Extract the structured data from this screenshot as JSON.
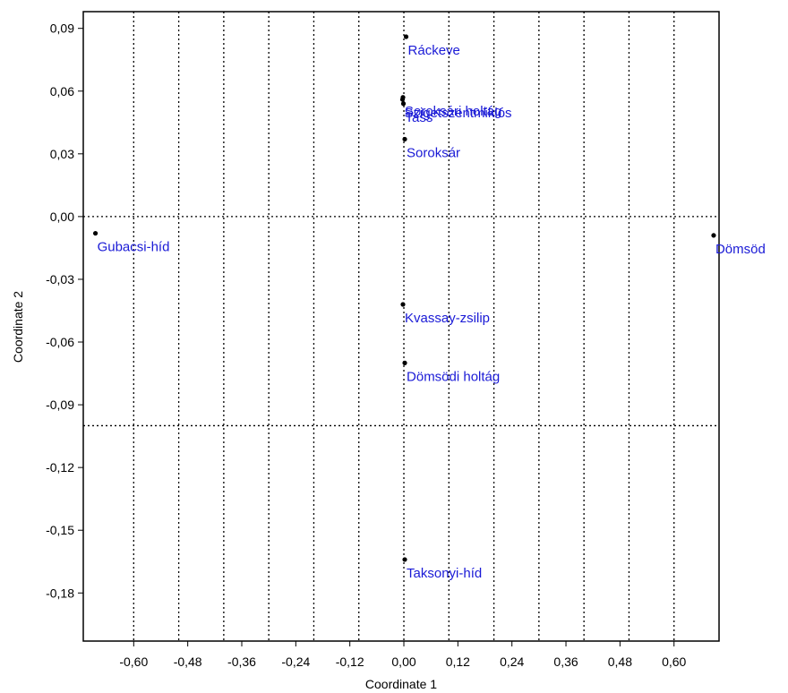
{
  "chart_data": {
    "type": "scatter",
    "title": "",
    "xlabel": "Coordinate 1",
    "ylabel": "Coordinate 2",
    "xlim": [
      -0.712,
      0.7
    ],
    "ylim": [
      -0.203,
      0.098
    ],
    "xticks": [
      -0.6,
      -0.48,
      -0.36,
      -0.24,
      -0.12,
      0.0,
      0.12,
      0.24,
      0.36,
      0.48,
      0.6
    ],
    "xtick_labels": [
      "-0,60",
      "-0,48",
      "-0,36",
      "-0,24",
      "-0,12",
      "0,00",
      "0,12",
      "0,24",
      "0,36",
      "0,48",
      "0,60"
    ],
    "yticks": [
      0.09,
      0.06,
      0.03,
      0.0,
      -0.03,
      -0.06,
      -0.09,
      -0.12,
      -0.15,
      -0.18
    ],
    "ytick_labels": [
      "0,09",
      "0,06",
      "0,03",
      "0,00",
      "-0,03",
      "-0,06",
      "-0,09",
      "-0,12",
      "-0,15",
      "-0,18"
    ],
    "vgrid": [
      -0.6,
      -0.5,
      -0.4,
      -0.3,
      -0.2,
      -0.1,
      0.0,
      0.1,
      0.2,
      0.3,
      0.4,
      0.5,
      0.6
    ],
    "hgrid": [
      0.0,
      -0.1
    ],
    "grid": true,
    "marker_color": "#000000",
    "label_color": "#1a1ad6",
    "points": [
      {
        "name": "Ráckeve",
        "x": 0.005,
        "y": 0.086
      },
      {
        "name": "Szigetszentmiklós",
        "x": -0.003,
        "y": 0.056
      },
      {
        "name": "Soroksári holtág",
        "x": -0.002,
        "y": 0.057
      },
      {
        "name": "Tass",
        "x": -0.001,
        "y": 0.054
      },
      {
        "name": "Soroksár",
        "x": 0.002,
        "y": 0.037
      },
      {
        "name": "Gubacsi-híd",
        "x": -0.685,
        "y": -0.008
      },
      {
        "name": "Dömsöd",
        "x": 0.688,
        "y": -0.009
      },
      {
        "name": "Kvassay-zsilip",
        "x": -0.002,
        "y": -0.042
      },
      {
        "name": "Dömsödi holtág",
        "x": 0.002,
        "y": -0.07
      },
      {
        "name": "Taksonyi-híd",
        "x": 0.002,
        "y": -0.164
      }
    ]
  }
}
